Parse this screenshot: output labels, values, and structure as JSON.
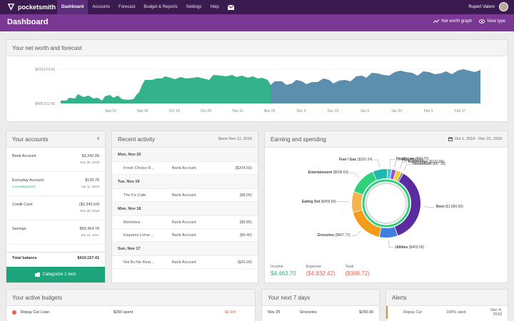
{
  "nav": {
    "brand": "pocketsmith",
    "links": [
      "Dashboard",
      "Accounts",
      "Forecast",
      "Budget & Reports",
      "Settings",
      "Help"
    ],
    "user": "Rupert Valero"
  },
  "header": {
    "title": "Dashboard",
    "net_worth_graph": "Net worth graph",
    "view_type": "View type"
  },
  "networth": {
    "title": "Your net worth and forecast",
    "y_top": "$413,674.06",
    "y_bottom": "$405,512.56",
    "x_ticks": [
      "Sep 16",
      "Sep 30",
      "Oct 14",
      "Oct 28",
      "Nov 11",
      "Nov 25",
      "Dec 9",
      "Dec 23",
      "Jan 6",
      "Jan 20",
      "Feb 3",
      "Feb 17"
    ]
  },
  "accounts": {
    "title": "Your accounts",
    "count": "8",
    "items": [
      {
        "name": "Bank Account",
        "status": "",
        "value": "$3,342.89",
        "date": "Nov 25, 2019"
      },
      {
        "name": "Everyday Account",
        "status": "1 uncategorized",
        "value": "$129.78",
        "date": "Apr 11, 2019"
      },
      {
        "name": "Credit Card",
        "status": "",
        "value": "($2,345.54)",
        "date": "Nov 25, 2019"
      },
      {
        "name": "Savings",
        "status": "",
        "value": "$65,454.78",
        "date": "Jan 16, 2017"
      }
    ],
    "total_label": "Total balance",
    "total_value": "$410,157.41",
    "categorize_label": "Categorize 1 item"
  },
  "activity": {
    "title": "Recent activity",
    "since": "Since Nov 11, 2019",
    "days": [
      {
        "label": "Mon, Nov 25",
        "txns": [
          {
            "payee": "Fresh Choice R...",
            "account": "Bank Account",
            "amount": "($204.56)"
          }
        ]
      },
      {
        "label": "Tue, Nov 19",
        "txns": [
          {
            "payee": "The Fix Cafe",
            "account": "Bank Account",
            "amount": "($8.00)"
          }
        ]
      },
      {
        "label": "Mon, Nov 18",
        "txns": [
          {
            "payee": "Momotea",
            "account": "Bank Account",
            "amount": "($9.80)"
          },
          {
            "payee": "Esquires Lorne ...",
            "account": "Bank Account",
            "amount": "($9.40)"
          }
        ]
      },
      {
        "label": "Sun, Nov 17",
        "txns": [
          {
            "payee": "Noi Bu Ne Rest...",
            "account": "Bank Account",
            "amount": "($26.00)"
          }
        ]
      }
    ]
  },
  "spending": {
    "title": "Earning and spending",
    "range": "Oct 1, 2019 - Dec 31, 2019",
    "segments": [
      {
        "label": "Rent",
        "amount": "($1,680.00)",
        "value": 1680,
        "color": "#5a2ca0"
      },
      {
        "label": "Utilities",
        "amount": "($403.55)",
        "value": 403.55,
        "color": "#3f7fe0"
      },
      {
        "label": "Groceries",
        "amount": "($807.72)",
        "value": 807.72,
        "color": "#f39c1c"
      },
      {
        "label": "Eating Out",
        "amount": "($456.60)",
        "value": 456.6,
        "color": "#f5b34a"
      },
      {
        "label": "Entertainment",
        "amount": "($606.63)",
        "value": 606.63,
        "color": "#2fd27a"
      },
      {
        "label": "Fuel / Gas",
        "amount": "($320.24)",
        "value": 320.24,
        "color": "#1fb8b0"
      },
      {
        "label": "Healthcare",
        "amount": "($93.79)",
        "value": 93.79,
        "color": "#3bd0e0"
      },
      {
        "label": "Pets",
        "amount": "($96.80)",
        "value": 96.8,
        "color": "#a34cd6"
      },
      {
        "label": "Automotive",
        "amount": "($120.99)",
        "value": 120.99,
        "color": "#e8d23a"
      },
      {
        "label": "Household",
        "amount": "($47.10)",
        "value": 47.1,
        "color": "#7d7d7d"
      }
    ],
    "income_label": "Income",
    "income_value": "$4,463.70",
    "expense_label": "Expense",
    "expense_value": "($4,832.42)",
    "total_label": "Total",
    "total_value": "($368.72)",
    "colors": {
      "income": "#2fb27a",
      "expense": "#e8604c"
    }
  },
  "budgets": {
    "title": "Your active budgets",
    "row": {
      "name": "Repay Car Loan",
      "spent": "$250 spent",
      "left": "$0 left"
    }
  },
  "next7": {
    "title": "Your next 7 days",
    "row": {
      "date": "Nov 25",
      "name": "Groceries",
      "amount": "$250.00"
    }
  },
  "alerts": {
    "title": "Alerts",
    "row": {
      "name": "Repay Car",
      "used": "100% used",
      "date": "Dec 4, 2019"
    }
  }
}
